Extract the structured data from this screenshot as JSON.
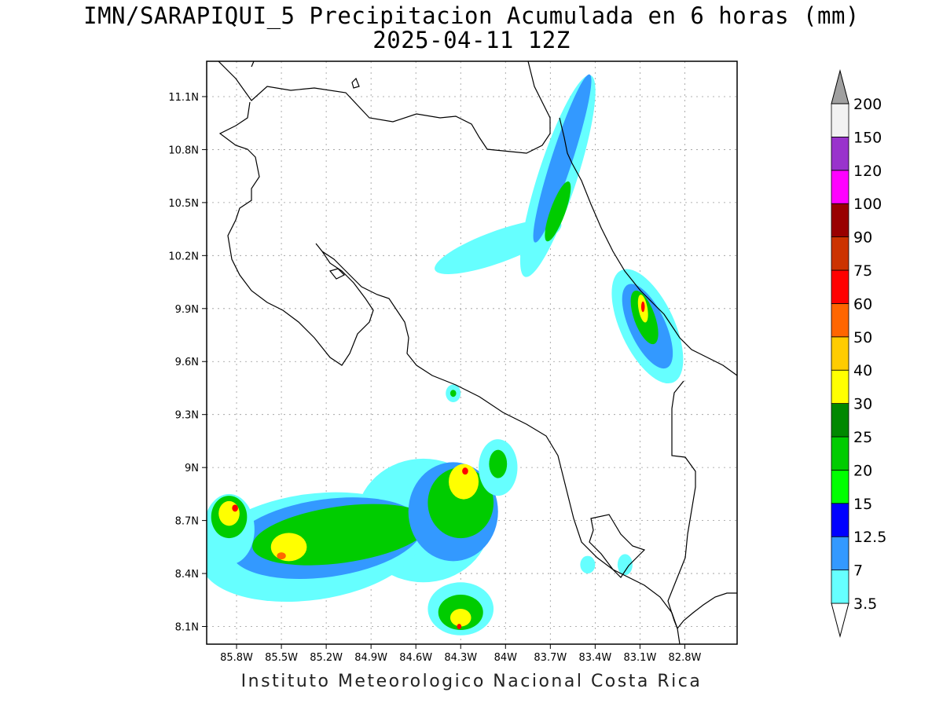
{
  "title": "IMN/SARAPIQUI_5 Precipitacion Acumulada en 6 horas (mm)",
  "subtitle": "2025-04-11 12Z",
  "footer": "Instituto Meteorologico Nacional Costa Rica",
  "map": {
    "lon_range": [
      -86.0,
      -82.45
    ],
    "lat_range": [
      8.0,
      11.3
    ],
    "lon_ticks": [
      {
        "value": -85.8,
        "label": "85.8W"
      },
      {
        "value": -85.5,
        "label": "85.5W"
      },
      {
        "value": -85.2,
        "label": "85.2W"
      },
      {
        "value": -84.9,
        "label": "84.9W"
      },
      {
        "value": -84.6,
        "label": "84.6W"
      },
      {
        "value": -84.3,
        "label": "84.3W"
      },
      {
        "value": -84.0,
        "label": "84W"
      },
      {
        "value": -83.7,
        "label": "83.7W"
      },
      {
        "value": -83.4,
        "label": "83.4W"
      },
      {
        "value": -83.1,
        "label": "83.1W"
      },
      {
        "value": -82.8,
        "label": "82.8W"
      }
    ],
    "lat_ticks": [
      {
        "value": 11.1,
        "label": "11.1N"
      },
      {
        "value": 10.8,
        "label": "10.8N"
      },
      {
        "value": 10.5,
        "label": "10.5N"
      },
      {
        "value": 10.2,
        "label": "10.2N"
      },
      {
        "value": 9.9,
        "label": "9.9N"
      },
      {
        "value": 9.6,
        "label": "9.6N"
      },
      {
        "value": 9.3,
        "label": "9.3N"
      },
      {
        "value": 9.0,
        "label": "9N"
      },
      {
        "value": 8.7,
        "label": "8.7N"
      },
      {
        "value": 8.4,
        "label": "8.4N"
      },
      {
        "value": 8.1,
        "label": "8.1N"
      }
    ],
    "grid": true
  },
  "colorbar": {
    "levels": [
      {
        "value": "3.5",
        "color": "#66ffff"
      },
      {
        "value": "7",
        "color": "#3399ff"
      },
      {
        "value": "12.5",
        "color": "#0000ff"
      },
      {
        "value": "15",
        "color": "#00ff00"
      },
      {
        "value": "20",
        "color": "#00cc00"
      },
      {
        "value": "25",
        "color": "#008800"
      },
      {
        "value": "30",
        "color": "#ffff00"
      },
      {
        "value": "40",
        "color": "#ffcc00"
      },
      {
        "value": "50",
        "color": "#ff6600"
      },
      {
        "value": "60",
        "color": "#ff0000"
      },
      {
        "value": "75",
        "color": "#cc3300"
      },
      {
        "value": "90",
        "color": "#990000"
      },
      {
        "value": "100",
        "color": "#ff00ff"
      },
      {
        "value": "120",
        "color": "#9933cc"
      },
      {
        "value": "150",
        "color": "#f2f2f2"
      },
      {
        "value": "200",
        "color": "#a0a0a0"
      }
    ]
  },
  "precip_areas": [
    {
      "color": "#66ffff",
      "lon": -84.05,
      "lat": 10.25,
      "rx": 0.45,
      "ry": 0.09,
      "rot": -20
    },
    {
      "color": "#66ffff",
      "lon": -83.65,
      "lat": 10.65,
      "rx": 0.13,
      "ry": 0.6,
      "rot": 18
    },
    {
      "color": "#3399ff",
      "lon": -83.62,
      "lat": 10.75,
      "rx": 0.07,
      "ry": 0.5,
      "rot": 18
    },
    {
      "color": "#00cc00",
      "lon": -83.65,
      "lat": 10.45,
      "rx": 0.05,
      "ry": 0.18,
      "rot": 20
    },
    {
      "color": "#66ffff",
      "lon": -83.05,
      "lat": 9.8,
      "rx": 0.18,
      "ry": 0.35,
      "rot": -25
    },
    {
      "color": "#3399ff",
      "lon": -83.05,
      "lat": 9.8,
      "rx": 0.12,
      "ry": 0.26,
      "rot": -25
    },
    {
      "color": "#00cc00",
      "lon": -83.07,
      "lat": 9.85,
      "rx": 0.07,
      "ry": 0.16,
      "rot": -20
    },
    {
      "color": "#ffff00",
      "lon": -83.08,
      "lat": 9.9,
      "rx": 0.03,
      "ry": 0.08,
      "rot": -10
    },
    {
      "color": "#ff0000",
      "lon": -83.08,
      "lat": 9.91,
      "rx": 0.012,
      "ry": 0.03,
      "rot": 0
    },
    {
      "color": "#66ffff",
      "lon": -84.55,
      "lat": 8.7,
      "rx": 0.45,
      "ry": 0.35,
      "rot": 0
    },
    {
      "color": "#66ffff",
      "lon": -85.3,
      "lat": 8.55,
      "rx": 0.75,
      "ry": 0.3,
      "rot": -8
    },
    {
      "color": "#3399ff",
      "lon": -85.2,
      "lat": 8.6,
      "rx": 0.65,
      "ry": 0.22,
      "rot": -8
    },
    {
      "color": "#00cc00",
      "lon": -85.1,
      "lat": 8.62,
      "rx": 0.6,
      "ry": 0.16,
      "rot": -8
    },
    {
      "color": "#ffff00",
      "lon": -85.45,
      "lat": 8.55,
      "rx": 0.12,
      "ry": 0.08,
      "rot": 0
    },
    {
      "color": "#ff6600",
      "lon": -85.5,
      "lat": 8.5,
      "rx": 0.03,
      "ry": 0.02,
      "rot": 0
    },
    {
      "color": "#3399ff",
      "lon": -84.35,
      "lat": 8.75,
      "rx": 0.3,
      "ry": 0.28,
      "rot": 0
    },
    {
      "color": "#00cc00",
      "lon": -84.3,
      "lat": 8.8,
      "rx": 0.22,
      "ry": 0.2,
      "rot": 0
    },
    {
      "color": "#ffff00",
      "lon": -84.28,
      "lat": 8.92,
      "rx": 0.1,
      "ry": 0.1,
      "rot": 0
    },
    {
      "color": "#ff0000",
      "lon": -84.27,
      "lat": 8.98,
      "rx": 0.02,
      "ry": 0.02,
      "rot": 0
    },
    {
      "color": "#66ffff",
      "lon": -85.85,
      "lat": 8.65,
      "rx": 0.17,
      "ry": 0.2,
      "rot": 0
    },
    {
      "color": "#00cc00",
      "lon": -85.85,
      "lat": 8.72,
      "rx": 0.12,
      "ry": 0.12,
      "rot": 0
    },
    {
      "color": "#ffff00",
      "lon": -85.85,
      "lat": 8.74,
      "rx": 0.07,
      "ry": 0.07,
      "rot": 0
    },
    {
      "color": "#ff0000",
      "lon": -85.81,
      "lat": 8.77,
      "rx": 0.02,
      "ry": 0.02,
      "rot": 0
    },
    {
      "color": "#66ffff",
      "lon": -84.3,
      "lat": 8.2,
      "rx": 0.22,
      "ry": 0.15,
      "rot": 0
    },
    {
      "color": "#00cc00",
      "lon": -84.3,
      "lat": 8.18,
      "rx": 0.15,
      "ry": 0.1,
      "rot": 0
    },
    {
      "color": "#ffff00",
      "lon": -84.3,
      "lat": 8.15,
      "rx": 0.07,
      "ry": 0.05,
      "rot": 0
    },
    {
      "color": "#ff0000",
      "lon": -84.31,
      "lat": 8.1,
      "rx": 0.015,
      "ry": 0.015,
      "rot": 0
    },
    {
      "color": "#66ffff",
      "lon": -84.05,
      "lat": 9.0,
      "rx": 0.13,
      "ry": 0.16,
      "rot": 0
    },
    {
      "color": "#00cc00",
      "lon": -84.05,
      "lat": 9.02,
      "rx": 0.06,
      "ry": 0.08,
      "rot": 0
    },
    {
      "color": "#66ffff",
      "lon": -84.35,
      "lat": 9.42,
      "rx": 0.05,
      "ry": 0.05,
      "rot": 0
    },
    {
      "color": "#00cc00",
      "lon": -84.35,
      "lat": 9.42,
      "rx": 0.02,
      "ry": 0.02,
      "rot": 0
    },
    {
      "color": "#66ffff",
      "lon": -83.45,
      "lat": 8.45,
      "rx": 0.05,
      "ry": 0.05,
      "rot": 0
    },
    {
      "color": "#66ffff",
      "lon": -83.2,
      "lat": 8.45,
      "rx": 0.05,
      "ry": 0.06,
      "rot": 0
    }
  ]
}
